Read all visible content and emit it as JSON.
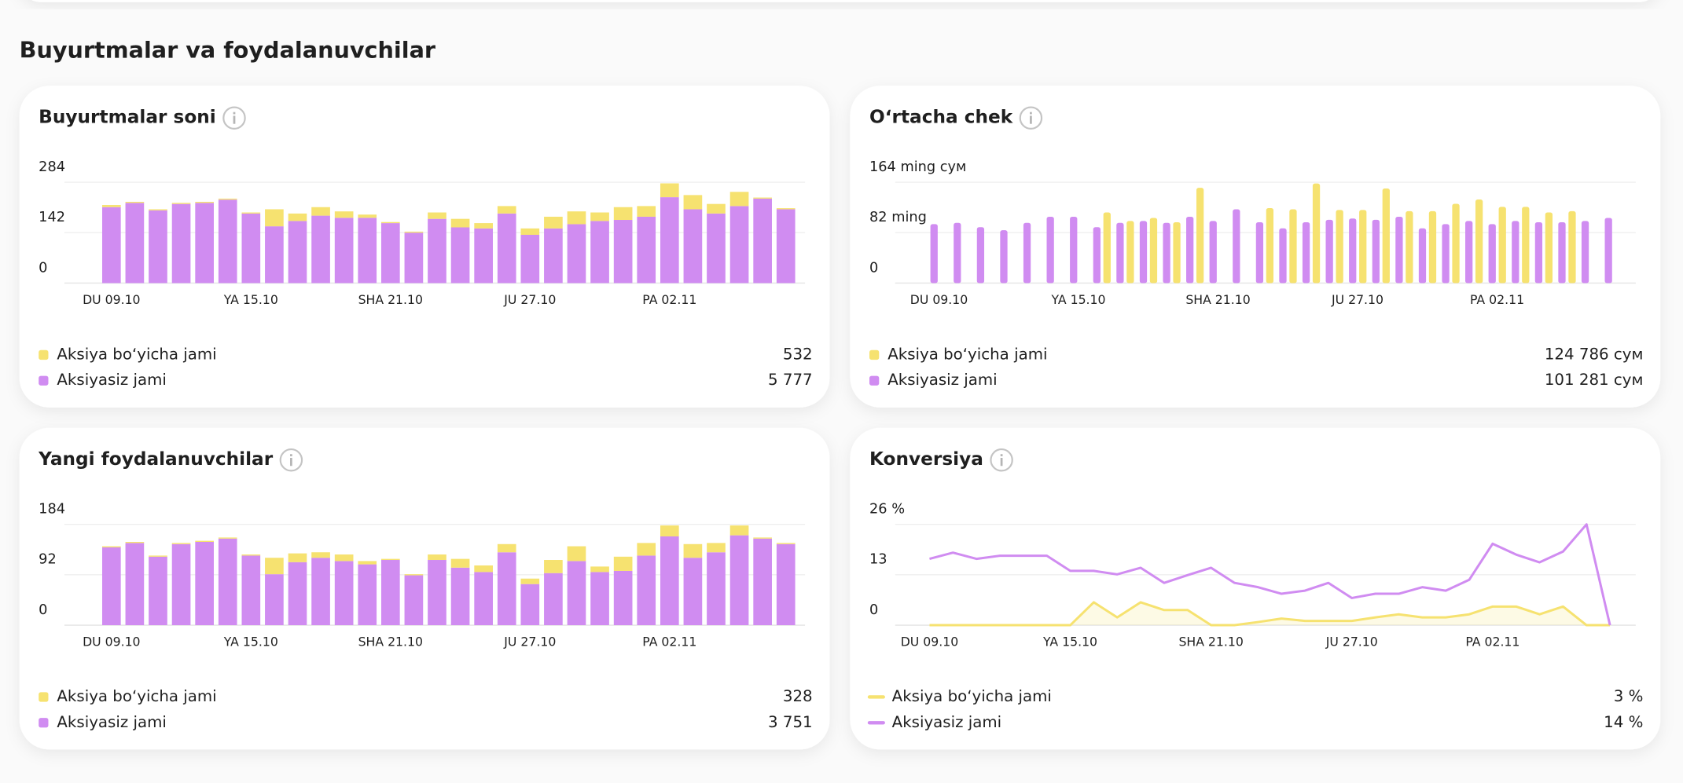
{
  "heading": "Buyurtmalar va foydalanuvchilar",
  "chart_data": [
    {
      "type": "stacked_bar",
      "title": "Buyurtmalar soni",
      "categories": [
        "DU 09.10",
        null,
        null,
        null,
        null,
        null,
        "YA 15.10",
        null,
        null,
        null,
        null,
        null,
        "SHA 21.10",
        null,
        null,
        null,
        null,
        null,
        "JU 27.10",
        null,
        null,
        null,
        null,
        null,
        "PA 02.11",
        null,
        null,
        null,
        null,
        null
      ],
      "series": [
        {
          "name": "Aksiya boʻyicha jami",
          "color": "#f6e270",
          "total": "532",
          "values": [
            6,
            3,
            3,
            3,
            3,
            3,
            3,
            48,
            21,
            24,
            18,
            9,
            3,
            3,
            18,
            24,
            15,
            21,
            18,
            33,
            36,
            24,
            36,
            30,
            39,
            40,
            27,
            40,
            3,
            3
          ]
        },
        {
          "name": "Aksiyasiz jami",
          "color": "#d08cf1",
          "total": "5 777",
          "values": [
            214,
            226,
            205,
            223,
            226,
            235,
            196,
            160,
            175,
            190,
            184,
            184,
            169,
            142,
            181,
            157,
            154,
            196,
            136,
            154,
            166,
            175,
            178,
            187,
            242,
            208,
            196,
            217,
            238,
            208
          ]
        }
      ],
      "ylim": [
        0,
        284
      ],
      "yticks": [
        0,
        142,
        284
      ]
    },
    {
      "type": "grouped_bar",
      "title": "Oʻrtacha chek",
      "categories": [
        "DU 09.10",
        null,
        null,
        null,
        null,
        null,
        "YA 15.10",
        null,
        null,
        null,
        null,
        null,
        "SHA 21.10",
        null,
        null,
        null,
        null,
        null,
        "JU 27.10",
        null,
        null,
        null,
        null,
        null,
        "PA 02.11",
        null,
        null,
        null,
        null,
        null
      ],
      "series": [
        {
          "name": "Aksiya boʻyicha jami",
          "color": "#f6e270",
          "total": "124 786 сум",
          "values": [
            0,
            0,
            0,
            0,
            0,
            0,
            0,
            115000,
            101000,
            106000,
            99000,
            155000,
            0,
            0,
            122000,
            120000,
            162000,
            119000,
            119000,
            154000,
            117000,
            117000,
            129000,
            136000,
            124000,
            124000,
            115000,
            117000,
            0,
            0
          ]
        },
        {
          "name": "Aksiyasiz jami",
          "color": "#d08cf1",
          "total": "101 281 сум",
          "values": [
            96000,
            98000,
            91000,
            86000,
            98000,
            108000,
            108000,
            91000,
            98000,
            101000,
            98000,
            108000,
            101000,
            120000,
            99000,
            89000,
            99000,
            103000,
            105000,
            103000,
            108000,
            89000,
            96000,
            101000,
            96000,
            101000,
            99000,
            99000,
            101000,
            106000
          ]
        }
      ],
      "ylim": [
        0,
        164000
      ],
      "yticks": [
        0,
        {
          "value": 82000,
          "label": "82 ming"
        },
        {
          "value": 164000,
          "label": "164 ming сум"
        }
      ]
    },
    {
      "type": "stacked_bar",
      "title": "Yangi foydalanuvchilar",
      "categories": [
        "DU 09.10",
        null,
        null,
        null,
        null,
        null,
        "YA 15.10",
        null,
        null,
        null,
        null,
        null,
        "SHA 21.10",
        null,
        null,
        null,
        null,
        null,
        "JU 27.10",
        null,
        null,
        null,
        null,
        null,
        "PA 02.11",
        null,
        null,
        null,
        null,
        null
      ],
      "series": [
        {
          "name": "Aksiya boʻyicha jami",
          "color": "#f6e270",
          "total": "328",
          "values": [
            2,
            2,
            2,
            2,
            2,
            2,
            2,
            30,
            16,
            10,
            12,
            6,
            2,
            2,
            10,
            16,
            12,
            15,
            10,
            24,
            27,
            10,
            26,
            23,
            20,
            25,
            17,
            18,
            2,
            2
          ]
        },
        {
          "name": "Aksiyasiz jami",
          "color": "#d08cf1",
          "total": "3 751",
          "values": [
            142,
            150,
            125,
            148,
            152,
            158,
            127,
            93,
            115,
            123,
            117,
            111,
            119,
            91,
            119,
            105,
            97,
            133,
            75,
            95,
            117,
            97,
            99,
            127,
            162,
            123,
            133,
            164,
            158,
            148
          ]
        }
      ],
      "ylim": [
        0,
        184
      ],
      "yticks": [
        0,
        92,
        184
      ]
    },
    {
      "type": "line",
      "title": "Konversiya",
      "categories": [
        "DU 09.10",
        null,
        null,
        null,
        null,
        null,
        "YA 15.10",
        null,
        null,
        null,
        null,
        null,
        "SHA 21.10",
        null,
        null,
        null,
        null,
        null,
        "JU 27.10",
        null,
        null,
        null,
        null,
        null,
        "PA 02.11",
        null,
        null,
        null,
        null,
        null
      ],
      "series": [
        {
          "name": "Aksiya boʻyicha jami",
          "color": "#f6e270",
          "total": "3 %",
          "values": [
            0,
            0,
            0,
            0,
            0,
            0,
            0,
            5.9,
            2.0,
            5.9,
            3.9,
            3.9,
            0,
            0,
            0.8,
            1.7,
            1.1,
            1.1,
            1.1,
            2.0,
            2.8,
            2.0,
            2.0,
            2.8,
            4.8,
            4.8,
            2.8,
            4.8,
            0,
            0
          ]
        },
        {
          "name": "Aksiyasiz jami",
          "color": "#d08cf1",
          "total": "14 %",
          "values": [
            17.1,
            18.7,
            17.1,
            17.9,
            17.9,
            17.9,
            14.0,
            14.0,
            13.1,
            14.8,
            10.9,
            12.9,
            14.8,
            10.9,
            9.8,
            8.1,
            8.9,
            10.9,
            7.0,
            8.1,
            8.1,
            9.8,
            8.9,
            11.7,
            21.0,
            18.2,
            16.2,
            19.0,
            26.0,
            0
          ]
        }
      ],
      "ylim": [
        0,
        26
      ],
      "yticks": [
        0,
        13,
        {
          "value": 26,
          "label": "26 %"
        }
      ]
    }
  ]
}
